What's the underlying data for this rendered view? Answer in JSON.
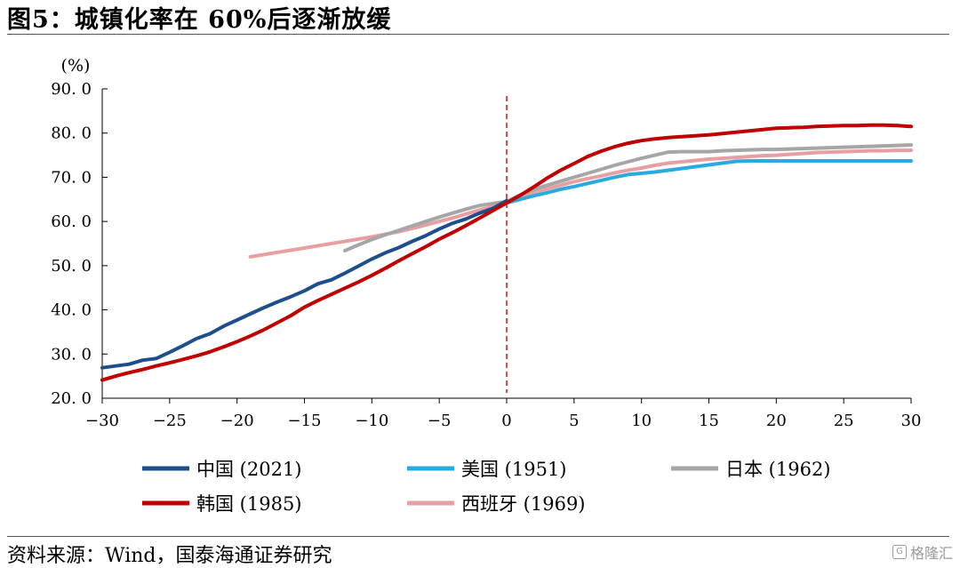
{
  "title": "图5：城镇化率在 60%后逐渐放缓",
  "source": "资料来源：Wind，国泰海通证券研究",
  "watermark": "格隆汇",
  "chart_data": {
    "type": "line",
    "ylabel": "(%)",
    "ylim": [
      20,
      90
    ],
    "xlim": [
      -30,
      30
    ],
    "yticks": [
      "20.0",
      "30.0",
      "40.0",
      "50.0",
      "60.0",
      "70.0",
      "80.0",
      "90.0"
    ],
    "xticks": [
      "-30",
      "-25",
      "-20",
      "-15",
      "-10",
      "-5",
      "0",
      "5",
      "10",
      "15",
      "20",
      "25",
      "30"
    ],
    "reference_line": {
      "x": 0,
      "style": "dashed",
      "color": "#d62020"
    },
    "legend_position": "bottom",
    "series": [
      {
        "name": "中国 (2021)",
        "color": "#1f4e8c",
        "x": [
          -30,
          -29,
          -28,
          -27,
          -26,
          -25,
          -24,
          -23,
          -22,
          -21,
          -20,
          -19,
          -18,
          -17,
          -16,
          -15,
          -14,
          -13,
          -12,
          -11,
          -10,
          -9,
          -8,
          -7,
          -6,
          -5,
          -4,
          -3,
          -2,
          -1,
          0
        ],
        "y": [
          26.9,
          27.3,
          27.7,
          28.6,
          29.0,
          30.4,
          31.9,
          33.5,
          34.6,
          36.3,
          37.7,
          39.1,
          40.5,
          41.8,
          43.0,
          44.3,
          45.9,
          46.8,
          48.3,
          49.9,
          51.5,
          52.9,
          54.1,
          55.5,
          56.8,
          58.3,
          59.6,
          60.6,
          61.9,
          63.0,
          64.7
        ]
      },
      {
        "name": "美国 (1951)",
        "color": "#29abe2",
        "x": [
          0,
          1,
          2,
          3,
          4,
          5,
          6,
          7,
          8,
          9,
          10,
          11,
          12,
          13,
          14,
          15,
          16,
          17,
          18,
          19,
          20,
          21,
          22,
          23,
          24,
          25,
          26,
          27,
          28,
          29,
          30
        ],
        "y": [
          64.2,
          65.0,
          65.8,
          66.5,
          67.3,
          67.9,
          68.6,
          69.3,
          70.0,
          70.6,
          70.9,
          71.2,
          71.6,
          72.0,
          72.4,
          72.8,
          73.2,
          73.6,
          73.7,
          73.7,
          73.7,
          73.7,
          73.7,
          73.7,
          73.7,
          73.7,
          73.7,
          73.7,
          73.7,
          73.7,
          73.7
        ]
      },
      {
        "name": "日本 (1962)",
        "color": "#a6a6a6",
        "x": [
          -12,
          -11,
          -10,
          -9,
          -8,
          -7,
          -6,
          -5,
          -4,
          -3,
          -2,
          -1,
          0,
          1,
          2,
          3,
          4,
          5,
          6,
          7,
          8,
          9,
          10,
          11,
          12,
          13,
          14,
          15,
          16,
          17,
          18,
          19,
          20,
          21,
          22,
          23,
          24,
          25,
          26,
          27,
          28,
          29,
          30
        ],
        "y": [
          53.4,
          54.7,
          55.9,
          57.0,
          58.0,
          59.0,
          60.0,
          61.0,
          61.9,
          62.8,
          63.6,
          64.1,
          64.5,
          66.0,
          67.2,
          68.2,
          69.1,
          70.0,
          70.9,
          71.8,
          72.7,
          73.5,
          74.3,
          75.0,
          75.7,
          75.8,
          75.8,
          75.8,
          76.0,
          76.1,
          76.2,
          76.3,
          76.3,
          76.4,
          76.5,
          76.6,
          76.7,
          76.8,
          76.9,
          77.0,
          77.1,
          77.2,
          77.3
        ]
      },
      {
        "name": "韩国 (1985)",
        "color": "#c00000",
        "x": [
          -30,
          -29,
          -28,
          -27,
          -26,
          -25,
          -24,
          -23,
          -22,
          -21,
          -20,
          -19,
          -18,
          -17,
          -16,
          -15,
          -14,
          -13,
          -12,
          -11,
          -10,
          -9,
          -8,
          -7,
          -6,
          -5,
          -4,
          -3,
          -2,
          -1,
          0,
          1,
          2,
          3,
          4,
          5,
          6,
          7,
          8,
          9,
          10,
          11,
          12,
          13,
          14,
          15,
          16,
          17,
          18,
          19,
          20,
          21,
          22,
          23,
          24,
          25,
          26,
          27,
          28,
          29,
          30
        ],
        "y": [
          24.1,
          25.0,
          25.8,
          26.5,
          27.3,
          28.0,
          28.8,
          29.6,
          30.5,
          31.6,
          32.8,
          34.1,
          35.5,
          37.1,
          38.7,
          40.6,
          42.1,
          43.5,
          44.9,
          46.3,
          47.8,
          49.4,
          51.1,
          52.7,
          54.3,
          56.0,
          57.5,
          59.1,
          60.8,
          62.5,
          64.2,
          65.9,
          67.8,
          69.8,
          71.6,
          73.1,
          74.7,
          75.9,
          76.9,
          77.7,
          78.3,
          78.7,
          79.0,
          79.2,
          79.4,
          79.6,
          79.9,
          80.2,
          80.5,
          80.8,
          81.1,
          81.2,
          81.3,
          81.5,
          81.6,
          81.7,
          81.7,
          81.8,
          81.8,
          81.7,
          81.5
        ]
      },
      {
        "name": "西班牙 (1969)",
        "color": "#e6a0a3",
        "x": [
          -19,
          -18,
          -17,
          -16,
          -15,
          -14,
          -13,
          -12,
          -11,
          -10,
          -9,
          -8,
          -7,
          -6,
          -5,
          -4,
          -3,
          -2,
          -1,
          0,
          1,
          2,
          3,
          4,
          5,
          6,
          7,
          8,
          9,
          10,
          11,
          12,
          13,
          14,
          15,
          16,
          17,
          18,
          19,
          20,
          21,
          22,
          23,
          24,
          25,
          26,
          27,
          28,
          29,
          30
        ],
        "y": [
          52.0,
          52.5,
          53.0,
          53.5,
          54.0,
          54.5,
          55.0,
          55.5,
          56.0,
          56.5,
          57.1,
          57.7,
          58.4,
          59.2,
          60.0,
          60.8,
          61.7,
          62.6,
          63.4,
          64.2,
          65.7,
          66.6,
          67.4,
          68.2,
          69.0,
          69.7,
          70.3,
          71.0,
          71.6,
          72.1,
          72.7,
          73.2,
          73.5,
          73.8,
          74.1,
          74.3,
          74.5,
          74.7,
          74.9,
          75.0,
          75.2,
          75.4,
          75.6,
          75.7,
          75.8,
          75.9,
          76.0,
          76.0,
          76.1,
          76.1
        ]
      }
    ]
  }
}
